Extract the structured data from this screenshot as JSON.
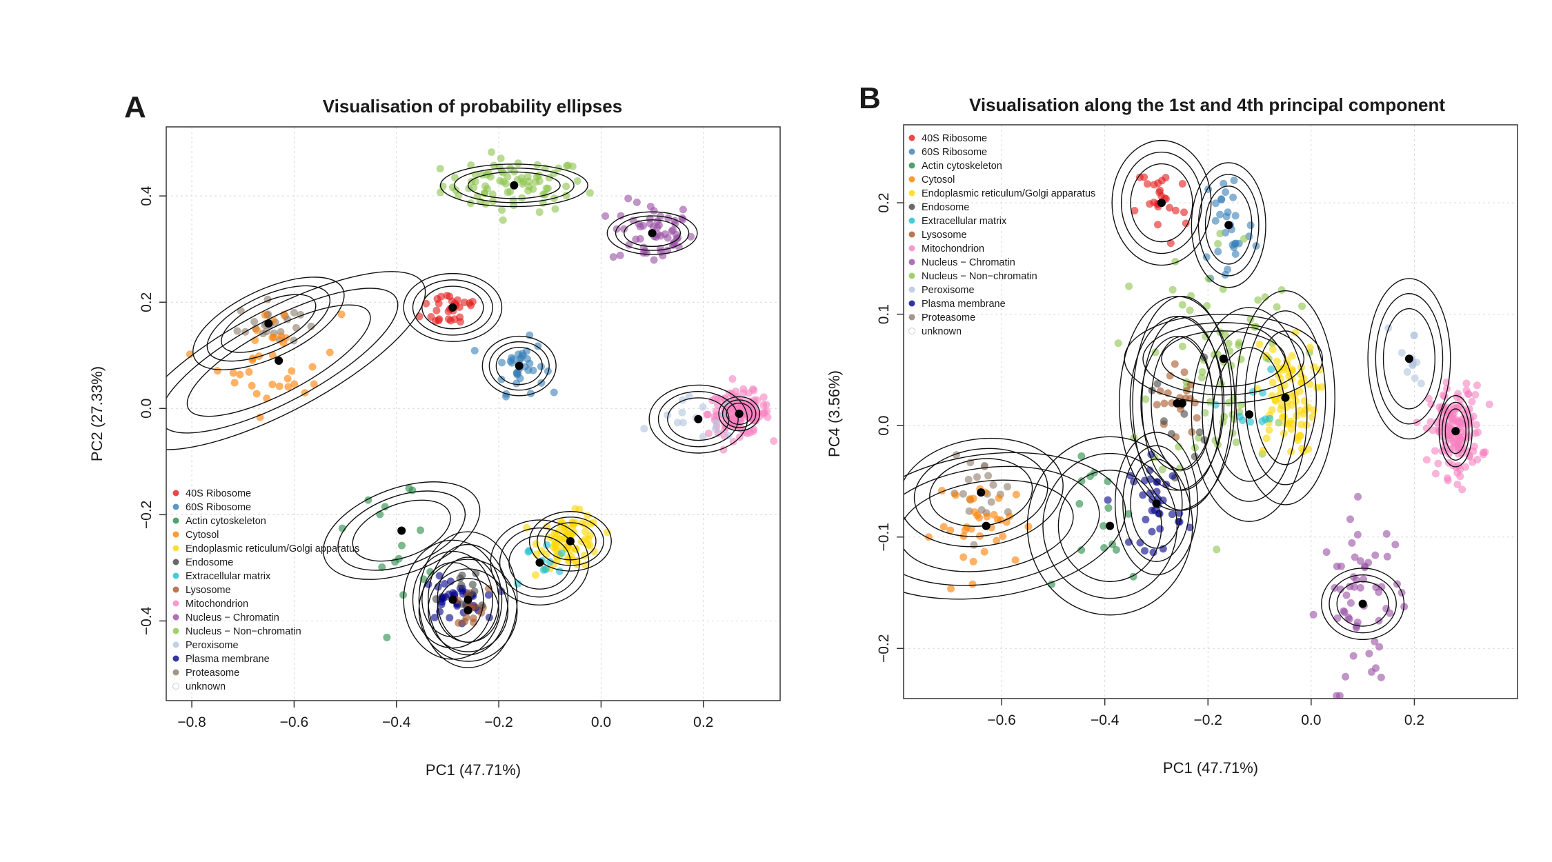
{
  "panels": [
    {
      "letter": "A",
      "title": "Visualisation of probability ellipses"
    },
    {
      "letter": "B",
      "title": "Visualisation along the 1st and 4th principal component"
    }
  ],
  "legend": [
    {
      "name": "40S Ribosome",
      "color": "#E41A1C"
    },
    {
      "name": "60S Ribosome",
      "color": "#377EB8"
    },
    {
      "name": "Actin cytoskeleton",
      "color": "#238B45"
    },
    {
      "name": "Cytosol",
      "color": "#FF7F00"
    },
    {
      "name": "Endoplasmic reticulum/Golgi apparatus",
      "color": "#FFD700"
    },
    {
      "name": "Endosome",
      "color": "#444444"
    },
    {
      "name": "Extracellular matrix",
      "color": "#17BECF"
    },
    {
      "name": "Lysosome",
      "color": "#A65628"
    },
    {
      "name": "Mitochondrion",
      "color": "#F781BF"
    },
    {
      "name": "Nucleus − Chromatin",
      "color": "#984EA3"
    },
    {
      "name": "Nucleus − Non−chromatin",
      "color": "#8BC34A"
    },
    {
      "name": "Peroxisome",
      "color": "#B0C4DE"
    },
    {
      "name": "Plasma membrane",
      "color": "#00008B"
    },
    {
      "name": "Proteasome",
      "color": "#8C7B6B"
    },
    {
      "name": "unknown",
      "color": "#CCCCCC"
    }
  ],
  "chart_data": [
    {
      "type": "scatter",
      "title": "Visualisation of probability ellipses",
      "xlabel": "PC1 (47.71%)",
      "ylabel": "PC2 (27.33%)",
      "xlim": [
        -0.85,
        0.35
      ],
      "ylim": [
        -0.55,
        0.53
      ],
      "xticks": [
        -0.8,
        -0.6,
        -0.4,
        -0.2,
        0.0,
        0.2
      ],
      "yticks": [
        -0.4,
        -0.2,
        0.0,
        0.2,
        0.4
      ],
      "xtick_labels": [
        "−0.8",
        "−0.6",
        "−0.4",
        "−0.2",
        "0.0",
        "0.2"
      ],
      "ytick_labels": [
        "−0.4",
        "−0.2",
        "0.0",
        "0.2",
        "0.4"
      ],
      "grid": true,
      "legend_position": "bottom-left",
      "clusters": [
        {
          "name": "Nucleus − Non−chromatin",
          "center": [
            -0.17,
            0.42
          ],
          "spread": [
            0.07,
            0.025
          ],
          "n": 80,
          "rx": 0.09,
          "ry": 0.025,
          "angle": 0
        },
        {
          "name": "Nucleus − Chromatin",
          "center": [
            0.1,
            0.33
          ],
          "spread": [
            0.04,
            0.03
          ],
          "n": 55,
          "rx": 0.055,
          "ry": 0.025,
          "angle": 0
        },
        {
          "name": "40S Ribosome",
          "center": [
            -0.29,
            0.19
          ],
          "spread": [
            0.03,
            0.02
          ],
          "n": 30,
          "rx": 0.06,
          "ry": 0.04,
          "angle": 0
        },
        {
          "name": "60S Ribosome",
          "center": [
            -0.16,
            0.08
          ],
          "spread": [
            0.025,
            0.025
          ],
          "n": 35,
          "rx": 0.045,
          "ry": 0.035,
          "angle": 0
        },
        {
          "name": "Proteasome",
          "center": [
            -0.65,
            0.16
          ],
          "spread": [
            0.03,
            0.02
          ],
          "n": 25,
          "rx": 0.1,
          "ry": 0.04,
          "angle": -25
        },
        {
          "name": "Cytosol",
          "center": [
            -0.63,
            0.09
          ],
          "spread": [
            0.06,
            0.05
          ],
          "n": 35,
          "rx": 0.2,
          "ry": 0.06,
          "angle": -28
        },
        {
          "name": "Mitochondrion",
          "center": [
            0.27,
            -0.01
          ],
          "spread": [
            0.03,
            0.02
          ],
          "n": 150,
          "rx": 0.025,
          "ry": 0.02,
          "angle": 0
        },
        {
          "name": "Peroxisome",
          "center": [
            0.19,
            -0.02
          ],
          "spread": [
            0.04,
            0.02
          ],
          "n": 15,
          "rx": 0.06,
          "ry": 0.04,
          "angle": 0
        },
        {
          "name": "Endoplasmic reticulum/Golgi apparatus",
          "center": [
            -0.06,
            -0.25
          ],
          "spread": [
            0.03,
            0.025
          ],
          "n": 80,
          "rx": 0.05,
          "ry": 0.035,
          "angle": 0
        },
        {
          "name": "Extracellular matrix",
          "center": [
            -0.12,
            -0.29
          ],
          "spread": [
            0.03,
            0.03
          ],
          "n": 10,
          "rx": 0.06,
          "ry": 0.05,
          "angle": 0
        },
        {
          "name": "Actin cytoskeleton",
          "center": [
            -0.39,
            -0.23
          ],
          "spread": [
            0.05,
            0.05
          ],
          "n": 15,
          "rx": 0.1,
          "ry": 0.05,
          "angle": -20
        },
        {
          "name": "Plasma membrane",
          "center": [
            -0.29,
            -0.36
          ],
          "spread": [
            0.03,
            0.02
          ],
          "n": 40,
          "rx": 0.06,
          "ry": 0.07,
          "angle": 0
        },
        {
          "name": "Lysosome",
          "center": [
            -0.26,
            -0.38
          ],
          "spread": [
            0.02,
            0.02
          ],
          "n": 15,
          "rx": 0.06,
          "ry": 0.06,
          "angle": 0
        },
        {
          "name": "Endosome",
          "center": [
            -0.26,
            -0.36
          ],
          "spread": [
            0.03,
            0.03
          ],
          "n": 10,
          "rx": 0.06,
          "ry": 0.08,
          "angle": 0
        }
      ]
    },
    {
      "type": "scatter",
      "title": "Visualisation along the 1st and 4th principal component",
      "xlabel": "PC1 (47.71%)",
      "ylabel": "PC4 (3.56%)",
      "xlim": [
        -0.79,
        0.4
      ],
      "ylim": [
        -0.245,
        0.27
      ],
      "xticks": [
        -0.6,
        -0.4,
        -0.2,
        0.0,
        0.2
      ],
      "yticks": [
        -0.2,
        -0.1,
        0.0,
        0.1,
        0.2
      ],
      "xtick_labels": [
        "−0.6",
        "−0.4",
        "−0.2",
        "0.0",
        "0.2"
      ],
      "ytick_labels": [
        "−0.2",
        "−0.1",
        "0.0",
        "0.1",
        "0.2"
      ],
      "grid": true,
      "legend_position": "top-left",
      "clusters": [
        {
          "name": "40S Ribosome",
          "center": [
            -0.29,
            0.2
          ],
          "spread": [
            0.025,
            0.02
          ],
          "n": 25,
          "rx": 0.06,
          "ry": 0.035,
          "angle": 0
        },
        {
          "name": "60S Ribosome",
          "center": [
            -0.16,
            0.18
          ],
          "spread": [
            0.025,
            0.03
          ],
          "n": 30,
          "rx": 0.045,
          "ry": 0.035,
          "angle": 0
        },
        {
          "name": "Nucleus − Non−chromatin",
          "center": [
            -0.17,
            0.06
          ],
          "spread": [
            0.07,
            0.06
          ],
          "n": 70,
          "rx": 0.12,
          "ry": 0.025,
          "angle": 0
        },
        {
          "name": "Endoplasmic reticulum/Golgi apparatus",
          "center": [
            -0.05,
            0.025
          ],
          "spread": [
            0.03,
            0.025
          ],
          "n": 80,
          "rx": 0.06,
          "ry": 0.06,
          "angle": 0
        },
        {
          "name": "Lysosome",
          "center": [
            -0.26,
            0.02
          ],
          "spread": [
            0.02,
            0.02
          ],
          "n": 20,
          "rx": 0.07,
          "ry": 0.06,
          "angle": 0
        },
        {
          "name": "Endosome",
          "center": [
            -0.25,
            0.02
          ],
          "spread": [
            0.03,
            0.03
          ],
          "n": 10,
          "rx": 0.06,
          "ry": 0.06,
          "angle": 0
        },
        {
          "name": "Extracellular matrix",
          "center": [
            -0.12,
            0.01
          ],
          "spread": [
            0.03,
            0.02
          ],
          "n": 10,
          "rx": 0.07,
          "ry": 0.06,
          "angle": 0
        },
        {
          "name": "Peroxisome",
          "center": [
            0.19,
            0.06
          ],
          "spread": [
            0.02,
            0.02
          ],
          "n": 12,
          "rx": 0.05,
          "ry": 0.045,
          "angle": 0
        },
        {
          "name": "Mitochondrion",
          "center": [
            0.28,
            -0.005
          ],
          "spread": [
            0.025,
            0.02
          ],
          "n": 150,
          "rx": 0.02,
          "ry": 0.02,
          "angle": 0
        },
        {
          "name": "Proteasome",
          "center": [
            -0.64,
            -0.06
          ],
          "spread": [
            0.03,
            0.015
          ],
          "n": 20,
          "rx": 0.1,
          "ry": 0.03,
          "angle": -8
        },
        {
          "name": "Cytosol",
          "center": [
            -0.63,
            -0.09
          ],
          "spread": [
            0.05,
            0.02
          ],
          "n": 35,
          "rx": 0.17,
          "ry": 0.04,
          "angle": -8
        },
        {
          "name": "Actin cytoskeleton",
          "center": [
            -0.39,
            -0.09
          ],
          "spread": [
            0.04,
            0.03
          ],
          "n": 15,
          "rx": 0.1,
          "ry": 0.05,
          "angle": 0
        },
        {
          "name": "Plasma membrane",
          "center": [
            -0.3,
            -0.07
          ],
          "spread": [
            0.025,
            0.02
          ],
          "n": 35,
          "rx": 0.05,
          "ry": 0.04,
          "angle": 0
        },
        {
          "name": "Nucleus − Chromatin",
          "center": [
            0.1,
            -0.16
          ],
          "spread": [
            0.04,
            0.04
          ],
          "n": 55,
          "rx": 0.05,
          "ry": 0.02,
          "angle": 0
        }
      ]
    }
  ]
}
